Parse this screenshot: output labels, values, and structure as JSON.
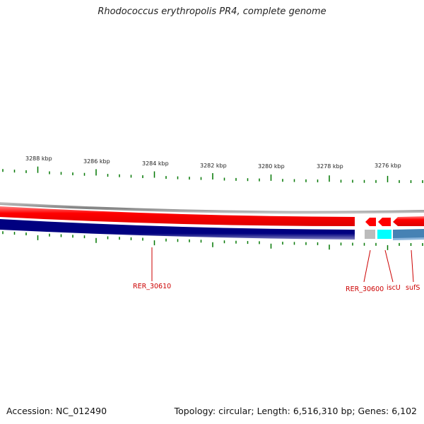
{
  "title": "Rhodococcus erythropolis PR4, complete genome",
  "accession": "Accession: NC_012490",
  "summary": "Topology: circular; Length: 6,516,310 bp; Genes: 6,102",
  "ruler": [
    "3288 kbp",
    "3286 kbp",
    "3284 kbp",
    "3282 kbp",
    "3280 kbp",
    "3278 kbp",
    "3276 kbp"
  ],
  "genes": [
    "RER_30610",
    "RER_30600",
    "iscU",
    "sufS"
  ],
  "colors": {
    "forward_strand": "#ff0000",
    "reverse_strand": "#000080",
    "backbone": "#808080",
    "tick": "#007700",
    "gene_label": "#cc0000",
    "highlight_gene": "#00ffff",
    "blue_gene": "#4682b4"
  }
}
